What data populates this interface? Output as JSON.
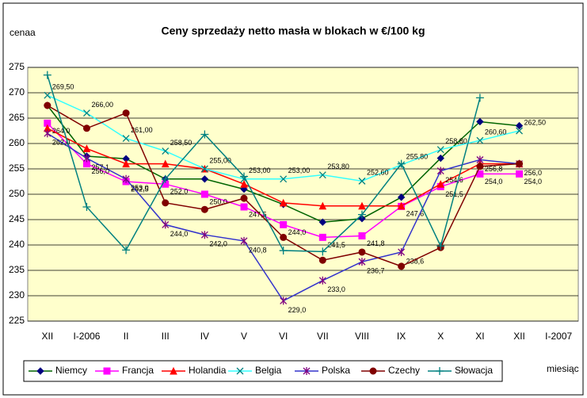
{
  "chart_data": {
    "type": "line",
    "title": "Ceny sprzedaży netto masła w blokach w €/100 kg",
    "y_label": "cenaa",
    "x_label": "miesiąc",
    "categories": [
      "XII",
      "I-2006",
      "II",
      "III",
      "IV",
      "V",
      "VI",
      "VII",
      "VIII",
      "IX",
      "X",
      "XI",
      "XII",
      "I-2007"
    ],
    "ylim": [
      225,
      275
    ],
    "yticks": [
      225,
      230,
      235,
      240,
      245,
      250,
      255,
      260,
      265,
      270,
      275
    ],
    "grid": true,
    "legend": "bottom",
    "series": [
      {
        "name": "Niemcy",
        "color": "#006400",
        "marker": "diamond",
        "marker_color": "#000080",
        "values": [
          267.5,
          257.5,
          257,
          253,
          253,
          251,
          248,
          244.5,
          245.2,
          249.4,
          257.1,
          264.3,
          263.5,
          null
        ]
      },
      {
        "name": "Francja",
        "color": "#ff00ff",
        "marker": "square",
        "marker_color": "#ff00ff",
        "values": [
          264.0,
          256.0,
          252.5,
          252.0,
          250.0,
          247.5,
          244.0,
          241.5,
          241.8,
          247.6,
          251.5,
          254.0,
          254.0,
          null
        ],
        "value_labels": [
          "264,0",
          "256,0",
          "252,5",
          "252,0",
          "250,0",
          "247,5",
          "244,0",
          "241,5",
          "241,8",
          "247,6",
          "251,5",
          "254,0",
          "254,0",
          null
        ]
      },
      {
        "name": "Holandia",
        "color": "#ff0000",
        "marker": "triangle",
        "marker_color": "#ff0000",
        "values": [
          263,
          259,
          256,
          256,
          255,
          252,
          248.3,
          247.7,
          247.7,
          247.7,
          252,
          256,
          256,
          null
        ]
      },
      {
        "name": "Belgia",
        "color": "#33ffff",
        "marker": "x",
        "marker_color": "#008080",
        "values": [
          269.5,
          266.0,
          261.0,
          258.5,
          255.0,
          253.0,
          253.0,
          253.8,
          252.6,
          255.8,
          258.8,
          260.6,
          262.5,
          null
        ],
        "value_labels": [
          "269,50",
          "266,00",
          "261,00",
          "258,50",
          "255,00",
          "253,00",
          "253,00",
          "253,80",
          "252,60",
          "255,80",
          "258,80",
          "260,60",
          "262,50",
          null
        ]
      },
      {
        "name": "Polska",
        "color": "#3333cc",
        "marker": "star",
        "marker_color": "#800080",
        "values": [
          262.0,
          257.1,
          253.0,
          244.0,
          242.0,
          240.8,
          229.0,
          233.0,
          236.7,
          238.6,
          254.6,
          256.8,
          256.0,
          null
        ],
        "value_labels": [
          "262,0",
          "257,1",
          "253,0",
          "244,0",
          "242,0",
          "240,8",
          "229,0",
          "233,0",
          "236,7",
          "238,6",
          "254,6",
          "256,8",
          "256,0",
          null
        ]
      },
      {
        "name": "Czechy",
        "color": "#800000",
        "marker": "circle",
        "marker_color": "#800000",
        "values": [
          267.5,
          263,
          266,
          248.3,
          247,
          249.2,
          241.5,
          237,
          238.6,
          235.8,
          239.5,
          255.5,
          256,
          null
        ]
      },
      {
        "name": "Słowacja",
        "color": "#008080",
        "marker": "plus",
        "marker_color": "#008080",
        "values": [
          273.5,
          247.5,
          239,
          253,
          261.8,
          253.5,
          238.9,
          238.7,
          246,
          256,
          239.8,
          269,
          null,
          null
        ]
      }
    ]
  }
}
